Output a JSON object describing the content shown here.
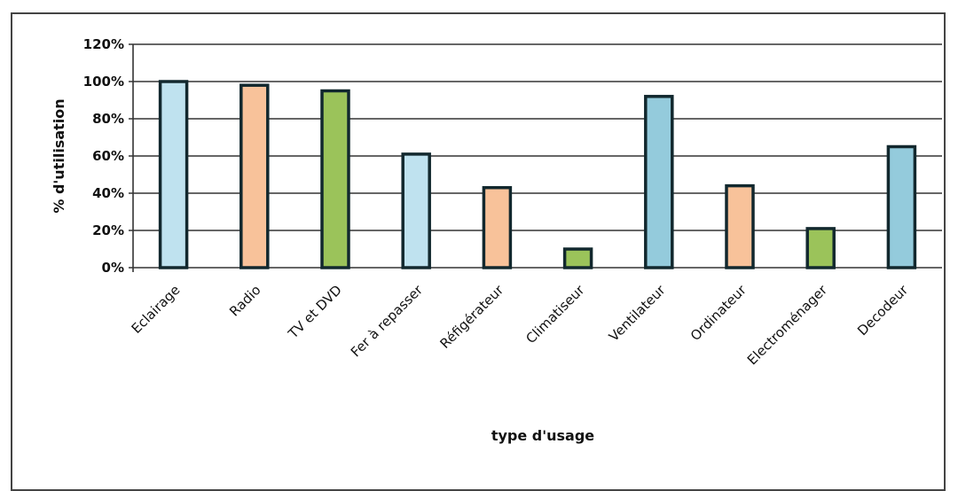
{
  "chart_data": {
    "type": "bar",
    "title": "",
    "xlabel": "type d'usage",
    "ylabel": "% d'utilisation",
    "ylim": [
      0,
      120
    ],
    "yticks": [
      "0%",
      "20%",
      "40%",
      "60%",
      "80%",
      "100%",
      "120%"
    ],
    "grid": true,
    "categories": [
      "Eclairage",
      "Radio",
      "TV et DVD",
      "Fer à repasser",
      "Réfigérateur",
      "Climatiseur",
      "Ventilateur",
      "Ordinateur",
      "Electroménager",
      "Decodeur"
    ],
    "values": [
      100,
      98,
      95,
      61,
      43,
      10,
      92,
      44,
      21,
      65
    ],
    "colors": [
      "#bfe2ef",
      "#f8c29a",
      "#9bc35a",
      "#bfe2ef",
      "#f8c29a",
      "#9bc35a",
      "#94cbdc",
      "#f8c29a",
      "#9bc35a",
      "#94cbdc"
    ],
    "bar_outline": "#12282e"
  }
}
